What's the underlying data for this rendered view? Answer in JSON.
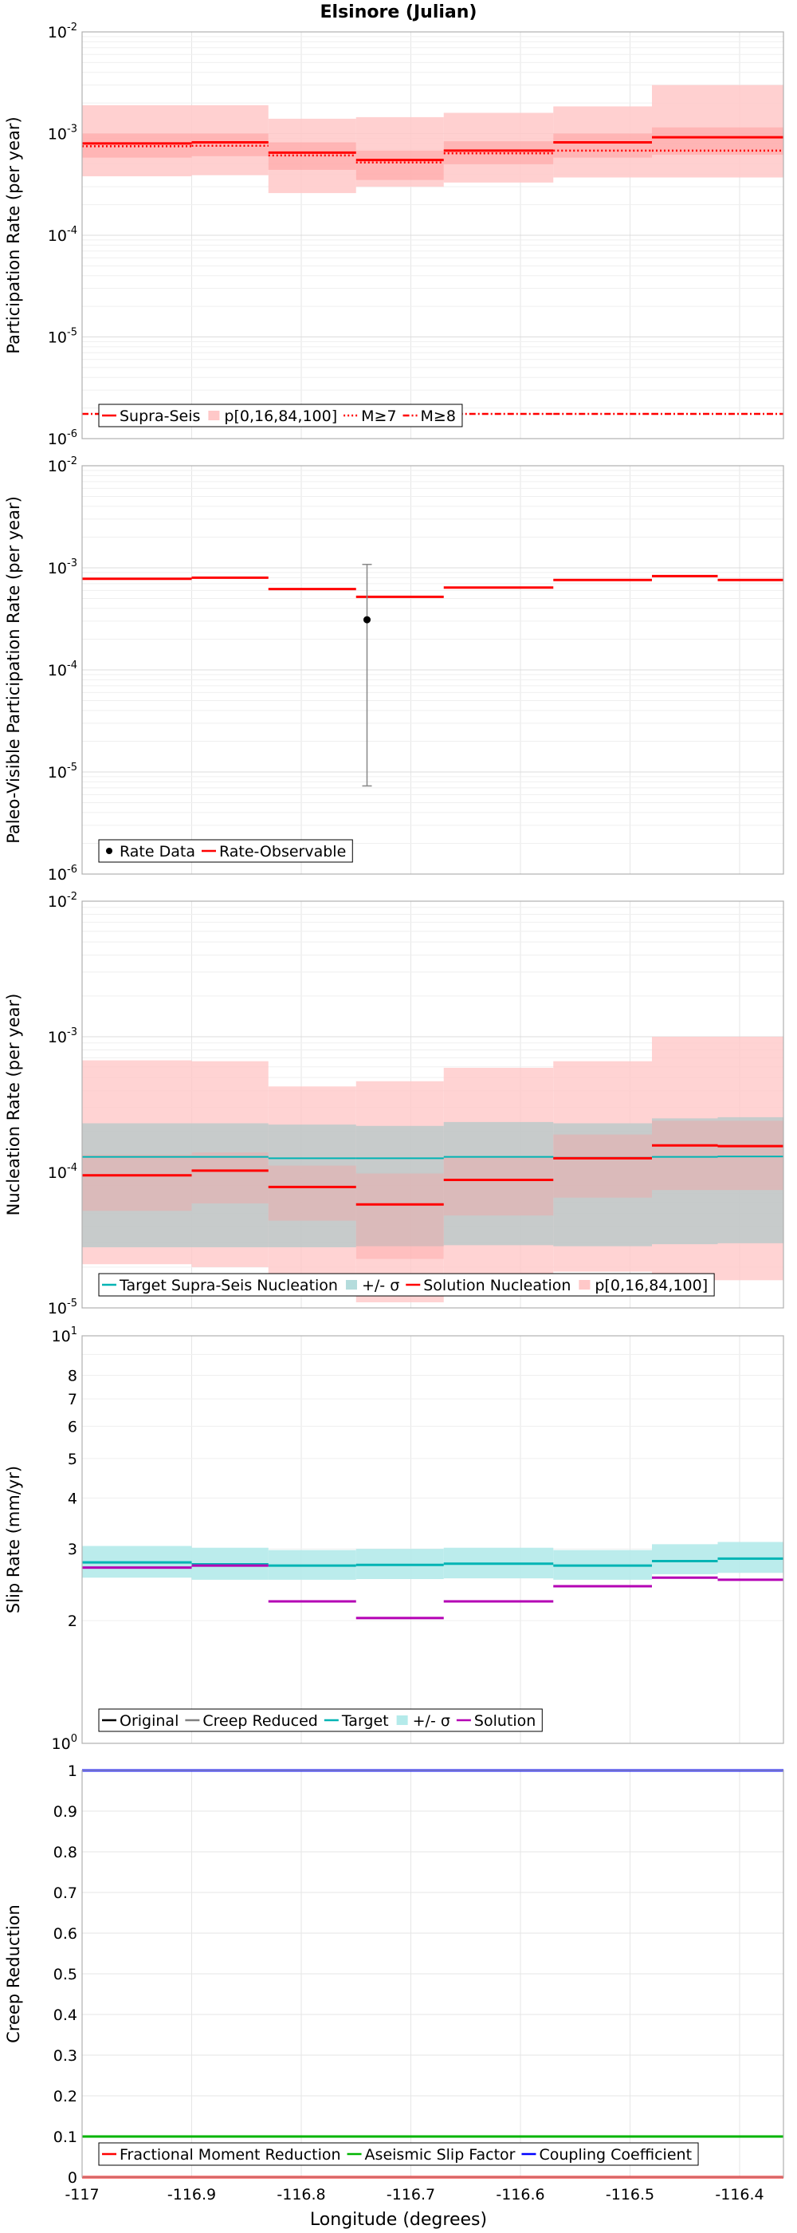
{
  "figure": {
    "title": "Elsinore (Julian)",
    "xlabel": "Longitude (degrees)",
    "xticks": [
      "-117",
      "-116.9",
      "-116.8",
      "-116.7",
      "-116.6",
      "-116.5",
      "-116.4"
    ],
    "xlim": [
      -117.0,
      -116.36
    ]
  },
  "chart_data": [
    {
      "id": "participation",
      "type": "line",
      "ylabel": "Participation Rate (per year)",
      "scale": "log",
      "ylim": [
        1e-06,
        0.01
      ],
      "grid": true,
      "yticks": [
        {
          "base": "10",
          "exp": "-2",
          "v": 0.01
        },
        {
          "base": "10",
          "exp": "-3",
          "v": 0.001
        },
        {
          "base": "10",
          "exp": "-4",
          "v": 0.0001
        },
        {
          "base": "10",
          "exp": "-5",
          "v": 1e-05
        },
        {
          "base": "10",
          "exp": "-6",
          "v": 1e-06
        }
      ],
      "x_edges": [
        -117.0,
        -116.9,
        -116.83,
        -116.75,
        -116.67,
        -116.57,
        -116.48,
        -116.36
      ],
      "band_outer": {
        "lo": [
          0.00038,
          0.00039,
          0.00026,
          0.0003,
          0.00033,
          0.00037,
          0.00037
        ],
        "hi": [
          0.0019,
          0.0019,
          0.0014,
          0.00145,
          0.0016,
          0.00185,
          0.003
        ]
      },
      "band_inner": {
        "lo": [
          0.00058,
          0.0006,
          0.00044,
          0.00035,
          0.0005,
          0.00058,
          0.00062
        ],
        "hi": [
          0.001,
          0.001,
          0.00082,
          0.00068,
          0.00084,
          0.001,
          0.00115
        ]
      },
      "series": [
        {
          "name": "Supra-Seis",
          "style": "solid",
          "values": [
            0.0008,
            0.00082,
            0.00065,
            0.00055,
            0.00068,
            0.00082,
            0.00092
          ]
        },
        {
          "name": "M≥7",
          "style": "dotted",
          "values": [
            0.00075,
            0.00076,
            0.00061,
            0.00052,
            0.00064,
            0.00068,
            0.00068
          ]
        },
        {
          "name": "M≥8",
          "style": "dashdot",
          "values": [
            1.75e-06,
            1.75e-06,
            1.75e-06,
            1.75e-06,
            1.75e-06,
            1.75e-06,
            1.75e-06
          ]
        }
      ],
      "legend": {
        "position": "lower-left",
        "items": [
          {
            "label": "Supra-Seis",
            "kind": "line",
            "style": "solid",
            "color": "#ff0000"
          },
          {
            "label": "p[0,16,84,100]",
            "kind": "patch",
            "color": "#ffc8c8"
          },
          {
            "label": "M≥7",
            "kind": "line",
            "style": "dotted",
            "color": "#ff0000"
          },
          {
            "label": "M≥8",
            "kind": "line",
            "style": "dashdot",
            "color": "#ff0000"
          }
        ]
      }
    },
    {
      "id": "paleo",
      "type": "line",
      "ylabel": "Paleo-Visible Participation Rate (per year)",
      "scale": "log",
      "ylim": [
        1e-06,
        0.01
      ],
      "grid": true,
      "yticks": [
        {
          "base": "10",
          "exp": "-2",
          "v": 0.01
        },
        {
          "base": "10",
          "exp": "-3",
          "v": 0.001
        },
        {
          "base": "10",
          "exp": "-4",
          "v": 0.0001
        },
        {
          "base": "10",
          "exp": "-5",
          "v": 1e-05
        },
        {
          "base": "10",
          "exp": "-6",
          "v": 1e-06
        }
      ],
      "x_edges": [
        -117.0,
        -116.9,
        -116.83,
        -116.75,
        -116.67,
        -116.57,
        -116.48,
        -116.36
      ],
      "series": [
        {
          "name": "Rate-Observable",
          "style": "solid",
          "values": [
            0.00078,
            0.0008,
            0.00062,
            0.00052,
            0.00064,
            0.00076,
            0.00083,
            0.00076
          ]
        }
      ],
      "x_edges_series": [
        -117.0,
        -116.9,
        -116.83,
        -116.75,
        -116.67,
        -116.57,
        -116.48,
        -116.42,
        -116.36
      ],
      "points": [
        {
          "x": -116.74,
          "y": 0.00031,
          "ylo": 7.3e-06,
          "yhi": 0.00108
        }
      ],
      "legend": {
        "position": "lower-left",
        "items": [
          {
            "label": "Rate Data",
            "kind": "dot",
            "color": "#000000"
          },
          {
            "label": "Rate-Observable",
            "kind": "line",
            "style": "solid",
            "color": "#ff0000"
          }
        ]
      }
    },
    {
      "id": "nucleation",
      "type": "line",
      "ylabel": "Nucleation Rate (per year)",
      "scale": "log",
      "ylim": [
        1e-05,
        0.01
      ],
      "grid": true,
      "yticks": [
        {
          "base": "10",
          "exp": "-2",
          "v": 0.01
        },
        {
          "base": "10",
          "exp": "-3",
          "v": 0.001
        },
        {
          "base": "10",
          "exp": "-4",
          "v": 0.0001
        },
        {
          "base": "10",
          "exp": "-5",
          "v": 1e-05
        }
      ],
      "x_edges": [
        -117.0,
        -116.9,
        -116.83,
        -116.75,
        -116.67,
        -116.57,
        -116.48,
        -116.42,
        -116.36
      ],
      "band_red_outer": {
        "lo": [
          2.1e-05,
          2e-05,
          1.45e-05,
          1.1e-05,
          1.4e-05,
          1.85e-05,
          1.6e-05,
          1.6e-05
        ],
        "hi": [
          0.00067,
          0.00066,
          0.00043,
          0.00047,
          0.00059,
          0.00066,
          0.001,
          0.001
        ]
      },
      "band_red_inner": {
        "lo": [
          5.2e-05,
          5.9e-05,
          4.4e-05,
          2.3e-05,
          4.8e-05,
          6.5e-05,
          7.4e-05,
          7.4e-05
        ],
        "hi": [
          0.000135,
          0.00014,
          0.000112,
          9.8e-05,
          0.00013,
          0.00019,
          0.00024,
          0.00024
        ]
      },
      "band_target": {
        "lo": [
          2.8e-05,
          2.8e-05,
          2.8e-05,
          2.85e-05,
          2.9e-05,
          2.85e-05,
          2.95e-05,
          3e-05
        ],
        "hi": [
          0.00023,
          0.00023,
          0.000225,
          0.00022,
          0.000235,
          0.00023,
          0.00025,
          0.000255
        ]
      },
      "series": [
        {
          "name": "Target Supra-Seis Nucleation",
          "style": "solid",
          "values": [
            0.00013,
            0.00013,
            0.000127,
            0.000127,
            0.00013,
            0.000128,
            0.00013,
            0.000131
          ]
        },
        {
          "name": "Solution Nucleation",
          "style": "solid",
          "values": [
            9.5e-05,
            0.000103,
            7.8e-05,
            5.8e-05,
            8.8e-05,
            0.000127,
            0.000158,
            0.000156
          ]
        }
      ],
      "legend": {
        "position": "lower-left",
        "items": [
          {
            "label": "Target Supra-Seis Nucleation",
            "kind": "line",
            "style": "solid",
            "color": "#00b4b4"
          },
          {
            "label": "+/- σ",
            "kind": "patch",
            "color": "#b4dcdc"
          },
          {
            "label": "Solution Nucleation",
            "kind": "line",
            "style": "solid",
            "color": "#ff0000"
          },
          {
            "label": "p[0,16,84,100]",
            "kind": "patch",
            "color": "#ffc8c8"
          }
        ]
      }
    },
    {
      "id": "slip",
      "type": "line",
      "ylabel": "Slip Rate (mm/yr)",
      "scale": "log",
      "ylim": [
        1,
        10
      ],
      "grid": true,
      "yticks": [
        {
          "base": "10",
          "exp": "1",
          "v": 10
        },
        {
          "base": "8",
          "exp": "",
          "v": 8
        },
        {
          "base": "7",
          "exp": "",
          "v": 7
        },
        {
          "base": "6",
          "exp": "",
          "v": 6
        },
        {
          "base": "5",
          "exp": "",
          "v": 5
        },
        {
          "base": "4",
          "exp": "",
          "v": 4
        },
        {
          "base": "3",
          "exp": "",
          "v": 3
        },
        {
          "base": "2",
          "exp": "",
          "v": 2
        },
        {
          "base": "10",
          "exp": "0",
          "v": 1
        }
      ],
      "x_edges": [
        -117.0,
        -116.9,
        -116.83,
        -116.75,
        -116.67,
        -116.57,
        -116.48,
        -116.42,
        -116.36
      ],
      "band_target": {
        "lo": [
          2.55,
          2.52,
          2.52,
          2.53,
          2.54,
          2.52,
          2.6,
          2.62
        ],
        "hi": [
          3.05,
          3.02,
          2.98,
          3.0,
          3.02,
          2.98,
          3.08,
          3.12
        ]
      },
      "series": [
        {
          "name": "Target",
          "style": "solid",
          "values": [
            2.78,
            2.75,
            2.73,
            2.74,
            2.76,
            2.73,
            2.8,
            2.84
          ]
        },
        {
          "name": "Solution",
          "style": "solid",
          "values": [
            2.7,
            2.73,
            2.23,
            2.03,
            2.23,
            2.43,
            2.55,
            2.52
          ]
        }
      ],
      "legend": {
        "position": "lower-left",
        "items": [
          {
            "label": "Original",
            "kind": "line",
            "style": "solid",
            "color": "#000000"
          },
          {
            "label": "Creep Reduced",
            "kind": "line",
            "style": "solid",
            "color": "#808080"
          },
          {
            "label": "Target",
            "kind": "line",
            "style": "solid",
            "color": "#00b4b4"
          },
          {
            "label": "+/- σ",
            "kind": "patch",
            "color": "#b4eaea"
          },
          {
            "label": "Solution",
            "kind": "line",
            "style": "solid",
            "color": "#b400b4"
          }
        ]
      }
    },
    {
      "id": "creep",
      "type": "line",
      "ylabel": "Creep Reduction",
      "scale": "linear",
      "ylim": [
        0,
        1
      ],
      "grid": true,
      "yticks": [
        {
          "base": "1",
          "exp": "",
          "v": 1.0
        },
        {
          "base": "0.9",
          "exp": "",
          "v": 0.9
        },
        {
          "base": "0.8",
          "exp": "",
          "v": 0.8
        },
        {
          "base": "0.7",
          "exp": "",
          "v": 0.7
        },
        {
          "base": "0.6",
          "exp": "",
          "v": 0.6
        },
        {
          "base": "0.5",
          "exp": "",
          "v": 0.5
        },
        {
          "base": "0.4",
          "exp": "",
          "v": 0.4
        },
        {
          "base": "0.3",
          "exp": "",
          "v": 0.3
        },
        {
          "base": "0.2",
          "exp": "",
          "v": 0.2
        },
        {
          "base": "0.1",
          "exp": "",
          "v": 0.1
        },
        {
          "base": "0",
          "exp": "",
          "v": 0.0
        }
      ],
      "series": [
        {
          "name": "Fractional Moment Reduction",
          "style": "solid",
          "value": 0.0
        },
        {
          "name": "Aseismic Slip Factor",
          "style": "solid",
          "value": 0.1
        },
        {
          "name": "Coupling Coefficient",
          "style": "solid",
          "value": 1.0
        }
      ],
      "legend": {
        "position": "lower-left",
        "items": [
          {
            "label": "Fractional Moment Reduction",
            "kind": "line",
            "style": "solid",
            "color": "#ff0000"
          },
          {
            "label": "Aseismic Slip Factor",
            "kind": "line",
            "style": "solid",
            "color": "#00b400"
          },
          {
            "label": "Coupling Coefficient",
            "kind": "line",
            "style": "solid",
            "color": "#0000ff"
          }
        ]
      }
    }
  ],
  "colors": {
    "red": "#ff0000",
    "band_red": "#ffc8c8",
    "band_red_inner": "#ff9a9a",
    "cyan": "#00b4b4",
    "band_cyan": "#b4eaea",
    "band_gray": "#b4c8c8",
    "magenta": "#b400b4",
    "green": "#00b400",
    "blue": "#0000ff",
    "grid": "#e6e6e6",
    "frame": "#b0b0b0"
  }
}
